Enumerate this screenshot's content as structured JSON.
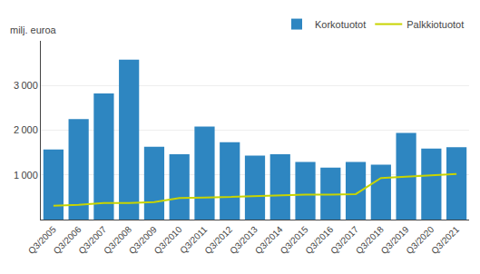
{
  "chart_data": {
    "type": "bar",
    "ylabel": "milj. euroa",
    "categories": [
      "Q3/2005",
      "Q3/2006",
      "Q3/2007",
      "Q3/2008",
      "Q3/2009",
      "Q3/2010",
      "Q3/2011",
      "Q3/2012",
      "Q3/2013",
      "Q3/2014",
      "Q3/2015",
      "Q3/2016",
      "Q3/2017",
      "Q3/2018",
      "Q3/2019",
      "Q3/2020",
      "Q3/2021"
    ],
    "series": [
      {
        "name": "Korkotuotot",
        "type": "bar",
        "color": "#2E86C1",
        "values": [
          1570,
          2250,
          2820,
          3580,
          1630,
          1460,
          2080,
          1730,
          1430,
          1460,
          1290,
          1160,
          1290,
          1230,
          1940,
          1590,
          1620
        ]
      },
      {
        "name": "Palkkiotuotot",
        "type": "line",
        "color": "#c8d400",
        "values": [
          310,
          330,
          370,
          370,
          390,
          480,
          490,
          510,
          530,
          540,
          560,
          560,
          570,
          930,
          960,
          1000,
          1020
        ]
      }
    ],
    "ylim": [
      0,
      4000
    ],
    "yticks": [
      {
        "value": 1000,
        "label": "1 000"
      },
      {
        "value": 2000,
        "label": "2 000"
      },
      {
        "value": 3000,
        "label": "3 000"
      }
    ],
    "grid": true,
    "legend": "upper right"
  }
}
